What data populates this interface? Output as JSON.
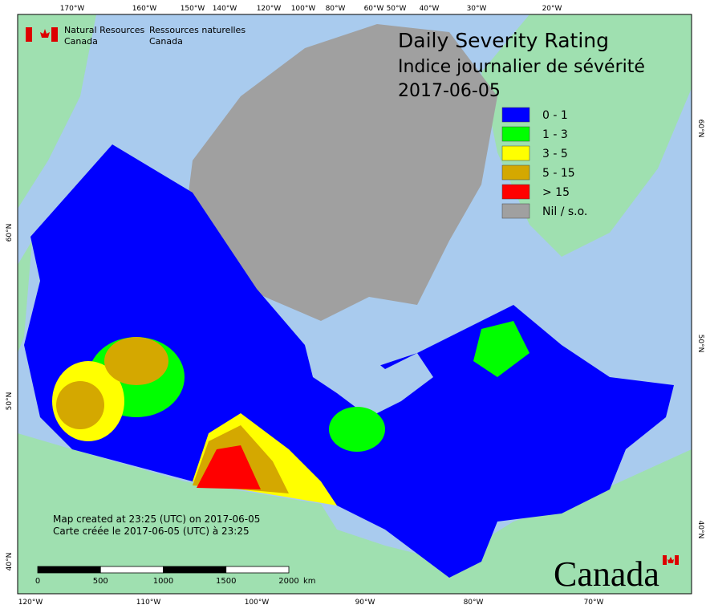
{
  "header": {
    "org_en": [
      "Natural Resources",
      "Canada"
    ],
    "org_fr": [
      "Ressources naturelles",
      "Canada"
    ]
  },
  "title": [
    "Daily Severity Rating",
    "Indice journalier de sévérité",
    "2017-06-05"
  ],
  "legend": [
    {
      "label": "0 - 1",
      "color": "#0000ff"
    },
    {
      "label": "1 - 3",
      "color": "#00ff00"
    },
    {
      "label": "3 - 5",
      "color": "#ffff00"
    },
    {
      "label": "5 - 15",
      "color": "#d4a800"
    },
    {
      "label": "> 15",
      "color": "#ff0000"
    },
    {
      "label": "Nil / s.o.",
      "color": "#a0a0a0"
    }
  ],
  "top_labels": [
    "170°W",
    "160°W",
    "150°W",
    "140°W",
    "120°W",
    "100°W",
    "80°W",
    "60°W",
    "50°W",
    "40°W",
    "30°W",
    "20°W"
  ],
  "bottom_labels": [
    "120°W",
    "110°W",
    "100°W",
    "90°W",
    "80°W",
    "70°W"
  ],
  "left_labels": [
    "60°N",
    "50°N",
    "40°N"
  ],
  "right_labels": [
    "60°N",
    "50°N",
    "40°N"
  ],
  "credits": [
    "Map created at 23:25 (UTC) on 2017-06-05",
    "Carte créée le 2017-06-05 (UTC) à 23:25"
  ],
  "scale": {
    "ticks": [
      0,
      500,
      1000,
      1500,
      2000
    ],
    "unit": "km"
  },
  "wordmark": "Canada"
}
